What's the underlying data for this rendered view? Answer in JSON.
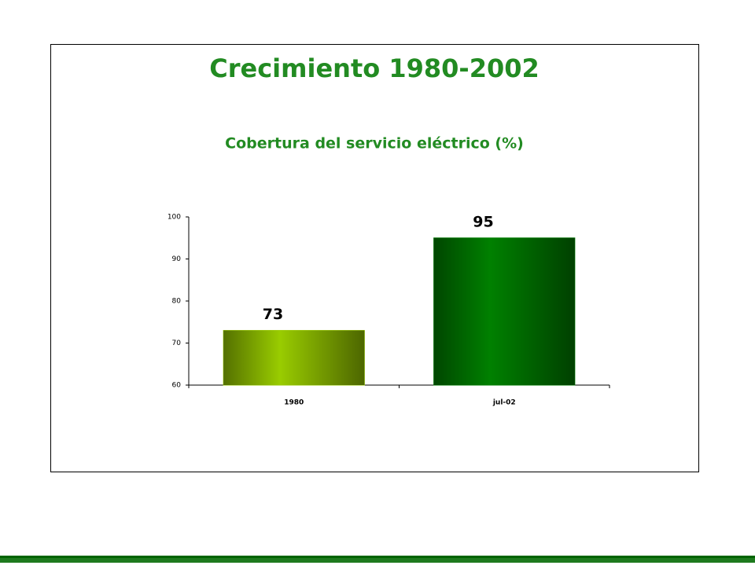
{
  "chart_data": {
    "type": "bar",
    "title": "Crecimiento 1980-2002",
    "subtitle": "Cobertura del servicio eléctrico (%)",
    "categories": [
      "1980",
      "jul-02"
    ],
    "values": [
      73,
      95
    ],
    "colors": [
      "#99cc00",
      "#008000"
    ],
    "ylim": [
      60,
      100
    ],
    "yticks": [
      60,
      70,
      80,
      90,
      100
    ],
    "grid": false
  }
}
